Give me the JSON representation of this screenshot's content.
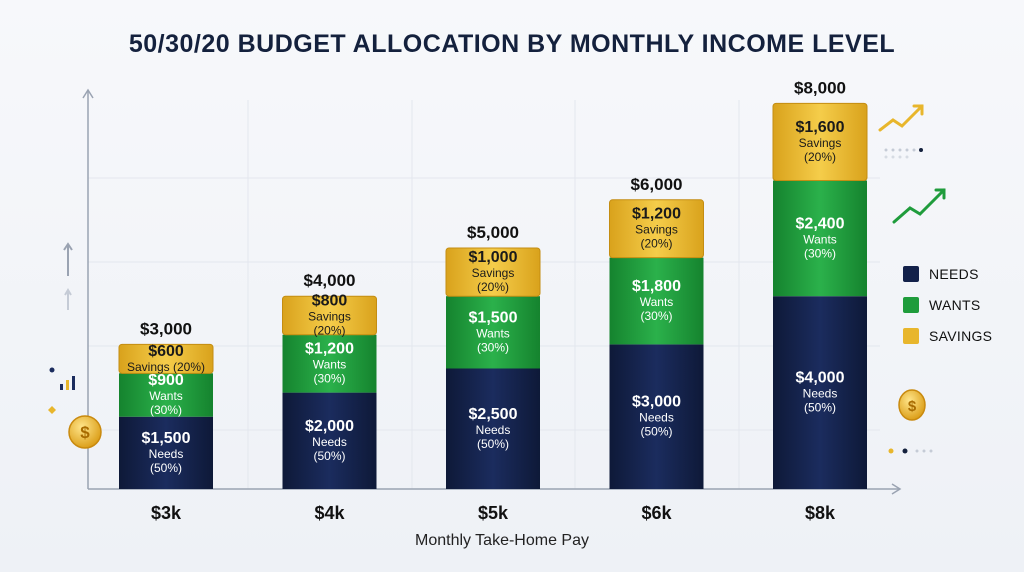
{
  "title": "50/30/20 BUDGET ALLOCATION BY MONTHLY INCOME LEVEL",
  "colors": {
    "needs": "#13214a",
    "wants": "#1f9c3c",
    "savings": "#e8b62c"
  },
  "chart_data": {
    "type": "bar",
    "stacked": true,
    "title": "50/30/20 BUDGET ALLOCATION BY MONTHLY INCOME LEVEL",
    "xlabel": "Monthly Take-Home Pay",
    "ylabel": "",
    "categories": [
      "$3k",
      "$4k",
      "$5k",
      "$6k",
      "$8k"
    ],
    "totals": [
      "$3,000",
      "$4,000",
      "$5,000",
      "$6,000",
      "$8,000"
    ],
    "ylim": [
      0,
      8000
    ],
    "grid": true,
    "legend_position": "right",
    "series": [
      {
        "name": "NEEDS",
        "key": "needs",
        "values": [
          1500,
          2000,
          2500,
          3000,
          4000
        ],
        "value_labels": [
          "$1,500",
          "$2,000",
          "$2,500",
          "$3,000",
          "$4,000"
        ],
        "sub_label": "Needs",
        "pct_label": "(50%)"
      },
      {
        "name": "WANTS",
        "key": "wants",
        "values": [
          900,
          1200,
          1500,
          1800,
          2400
        ],
        "value_labels": [
          "$900",
          "$1,200",
          "$1,500",
          "$1,800",
          "$2,400"
        ],
        "sub_label": "Wants",
        "pct_label": "(30%)"
      },
      {
        "name": "SAVINGS",
        "key": "savings",
        "values": [
          600,
          800,
          1000,
          1200,
          1600
        ],
        "value_labels": [
          "$600",
          "$800",
          "$1,000",
          "$1,200",
          "$1,600"
        ],
        "sub_label": "Savings",
        "pct_label": "(20%)",
        "inline_first": "Savings (20%)"
      }
    ]
  }
}
